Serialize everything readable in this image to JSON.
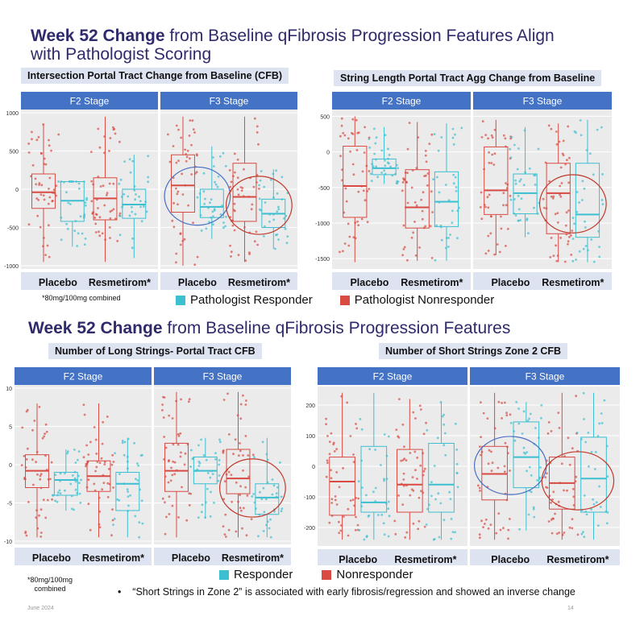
{
  "heading1": {
    "bold": "Week 52 Change",
    "rest": " from Baseline qFibrosis Progression Features Align",
    "line2": "with Pathologist Scoring"
  },
  "heading2": {
    "bold": "Week 52 Change",
    "rest": " from Baseline qFibrosis Progression Features"
  },
  "colors": {
    "responder": "#3bbfd1",
    "nonresponder": "#d94a43",
    "strip": "#4472c4",
    "panel_bg": "#ebebeb",
    "title_bg": "#dde3f1",
    "label_bg": "#dde3f1",
    "heading": "#2e2a6b"
  },
  "legend_top": {
    "responder": "Pathologist Responder",
    "nonresponder": "Pathologist Nonresponder"
  },
  "legend_bottom": {
    "responder": "Responder",
    "nonresponder": "Nonresponder"
  },
  "notes": {
    "top": "*80mg/100mg combined",
    "bottom": "*80mg/100mg combined"
  },
  "bullet": "“Short Strings in Zone 2” is associated with early fibrosis/regression and showed an inverse change",
  "footer": {
    "left": "June 2024",
    "right": "14"
  },
  "chart_data": [
    {
      "type": "box",
      "title": "Intersection Portal Tract Change from Baseline (CFB)",
      "facets": [
        "F2 Stage",
        "F3 Stage"
      ],
      "categories": [
        "Placebo",
        "Resmetirom*"
      ],
      "ylim": [
        -1000,
        1000
      ],
      "yticks": [
        -1000,
        -500,
        0,
        500,
        1000
      ],
      "series": [
        {
          "name": "Pathologist Nonresponder",
          "facet": "F2 Stage",
          "category": "Placebo",
          "q1": -250,
          "median": -40,
          "q3": 200,
          "whislo": -950,
          "whishi": 850
        },
        {
          "name": "Pathologist Responder",
          "facet": "F2 Stage",
          "category": "Placebo",
          "q1": -420,
          "median": -150,
          "q3": 100,
          "whislo": -750,
          "whishi": 100
        },
        {
          "name": "Pathologist Nonresponder",
          "facet": "F2 Stage",
          "category": "Resmetirom*",
          "q1": -400,
          "median": -120,
          "q3": 150,
          "whislo": -950,
          "whishi": 950
        },
        {
          "name": "Pathologist Responder",
          "facet": "F2 Stage",
          "category": "Resmetirom*",
          "q1": -380,
          "median": -200,
          "q3": 0,
          "whislo": -900,
          "whishi": 450
        },
        {
          "name": "Pathologist Nonresponder",
          "facet": "F3 Stage",
          "category": "Placebo",
          "q1": -300,
          "median": 50,
          "q3": 450,
          "whislo": -1000,
          "whishi": 950
        },
        {
          "name": "Pathologist Responder",
          "facet": "F3 Stage",
          "category": "Placebo",
          "q1": -370,
          "median": -230,
          "q3": 0,
          "whislo": -650,
          "whishi": 560
        },
        {
          "name": "Pathologist Nonresponder",
          "facet": "F3 Stage",
          "category": "Resmetirom*",
          "q1": -420,
          "median": -100,
          "q3": 340,
          "whislo": -950,
          "whishi": 950
        },
        {
          "name": "Pathologist Responder",
          "facet": "F3 Stage",
          "category": "Resmetirom*",
          "q1": -500,
          "median": -320,
          "q3": -130,
          "whislo": -780,
          "whishi": 260
        }
      ],
      "highlights": [
        {
          "facet": "F3 Stage",
          "category": "Placebo",
          "color": "blue"
        },
        {
          "facet": "F3 Stage",
          "category": "Resmetirom*",
          "color": "red"
        }
      ]
    },
    {
      "type": "box",
      "title": "String Length Portal Tract Agg Change from Baseline",
      "facets": [
        "F2 Stage",
        "F3 Stage"
      ],
      "categories": [
        "Placebo",
        "Resmetirom*"
      ],
      "ylim": [
        -1600,
        550
      ],
      "yticks": [
        -1500,
        -1000,
        -500,
        0,
        500
      ],
      "series": [
        {
          "name": "Pathologist Nonresponder",
          "facet": "F2 Stage",
          "category": "Placebo",
          "q1": -920,
          "median": -480,
          "q3": 80,
          "whislo": -1550,
          "whishi": 500
        },
        {
          "name": "Pathologist Responder",
          "facet": "F2 Stage",
          "category": "Placebo",
          "q1": -320,
          "median": -230,
          "q3": -100,
          "whislo": -450,
          "whishi": 350
        },
        {
          "name": "Pathologist Nonresponder",
          "facet": "F2 Stage",
          "category": "Resmetirom*",
          "q1": -1070,
          "median": -780,
          "q3": -250,
          "whislo": -1530,
          "whishi": 420
        },
        {
          "name": "Pathologist Responder",
          "facet": "F2 Stage",
          "category": "Resmetirom*",
          "q1": -1050,
          "median": -700,
          "q3": -280,
          "whislo": -1530,
          "whishi": 400
        },
        {
          "name": "Pathologist Nonresponder",
          "facet": "F3 Stage",
          "category": "Placebo",
          "q1": -880,
          "median": -540,
          "q3": 70,
          "whislo": -1450,
          "whishi": 450
        },
        {
          "name": "Pathologist Responder",
          "facet": "F3 Stage",
          "category": "Placebo",
          "q1": -870,
          "median": -580,
          "q3": -310,
          "whislo": -1200,
          "whishi": 350
        },
        {
          "name": "Pathologist Nonresponder",
          "facet": "F3 Stage",
          "category": "Resmetirom*",
          "q1": -1150,
          "median": -580,
          "q3": -160,
          "whislo": -1550,
          "whishi": 400
        },
        {
          "name": "Pathologist Responder",
          "facet": "F3 Stage",
          "category": "Resmetirom*",
          "q1": -1200,
          "median": -880,
          "q3": -160,
          "whislo": -1550,
          "whishi": 450
        }
      ],
      "highlights": [
        {
          "facet": "F3 Stage",
          "category": "Resmetirom*",
          "color": "red"
        }
      ]
    },
    {
      "type": "box",
      "title": "Number of Long Strings- Portal Tract CFB",
      "facets": [
        "F2 Stage",
        "F3 Stage"
      ],
      "categories": [
        "Placebo",
        "Resmetirom*"
      ],
      "ylim": [
        -10,
        10
      ],
      "yticks": [
        -10,
        -5,
        0,
        5,
        10
      ],
      "series": [
        {
          "name": "Nonresponder",
          "facet": "F2 Stage",
          "category": "Placebo",
          "q1": -3,
          "median": -0.8,
          "q3": 1.3,
          "whislo": -9.5,
          "whishi": 8
        },
        {
          "name": "Responder",
          "facet": "F2 Stage",
          "category": "Placebo",
          "q1": -4,
          "median": -2,
          "q3": -1,
          "whislo": -6,
          "whishi": 2
        },
        {
          "name": "Nonresponder",
          "facet": "F2 Stage",
          "category": "Resmetirom*",
          "q1": -3.5,
          "median": -1.5,
          "q3": 0.5,
          "whislo": -9.5,
          "whishi": 8
        },
        {
          "name": "Responder",
          "facet": "F2 Stage",
          "category": "Resmetirom*",
          "q1": -6,
          "median": -2.5,
          "q3": -1,
          "whislo": -9.5,
          "whishi": 3.5
        },
        {
          "name": "Nonresponder",
          "facet": "F3 Stage",
          "category": "Placebo",
          "q1": -3.5,
          "median": -0.8,
          "q3": 2.8,
          "whislo": -9.5,
          "whishi": 9.5
        },
        {
          "name": "Responder",
          "facet": "F3 Stage",
          "category": "Placebo",
          "q1": -2.5,
          "median": -0.8,
          "q3": 1,
          "whislo": -7,
          "whishi": 3.5
        },
        {
          "name": "Nonresponder",
          "facet": "F3 Stage",
          "category": "Resmetirom*",
          "q1": -3.8,
          "median": -1.8,
          "q3": 2,
          "whislo": -9.5,
          "whishi": 9.5
        },
        {
          "name": "Responder",
          "facet": "F3 Stage",
          "category": "Resmetirom*",
          "q1": -6.5,
          "median": -4.3,
          "q3": -2.5,
          "whislo": -9.5,
          "whishi": 3.5
        }
      ],
      "highlights": [
        {
          "facet": "F3 Stage",
          "category": "Resmetirom*",
          "color": "red"
        }
      ]
    },
    {
      "type": "box",
      "title": "Number of Short Strings Zone 2 CFB",
      "facets": [
        "F2 Stage",
        "F3 Stage"
      ],
      "categories": [
        "Placebo",
        "Resmetirom*"
      ],
      "ylim": [
        -250,
        250
      ],
      "yticks": [
        -200,
        -100,
        0,
        100,
        200
      ],
      "series": [
        {
          "name": "Nonresponder",
          "facet": "F2 Stage",
          "category": "Placebo",
          "q1": -160,
          "median": -50,
          "q3": 30,
          "whislo": -240,
          "whishi": 240
        },
        {
          "name": "Responder",
          "facet": "F2 Stage",
          "category": "Placebo",
          "q1": -150,
          "median": -118,
          "q3": 65,
          "whislo": -240,
          "whishi": 240
        },
        {
          "name": "Nonresponder",
          "facet": "F2 Stage",
          "category": "Resmetirom*",
          "q1": -150,
          "median": -60,
          "q3": 55,
          "whislo": -240,
          "whishi": 220
        },
        {
          "name": "Responder",
          "facet": "F2 Stage",
          "category": "Resmetirom*",
          "q1": -150,
          "median": -60,
          "q3": 75,
          "whislo": -240,
          "whishi": 210
        },
        {
          "name": "Nonresponder",
          "facet": "F3 Stage",
          "category": "Placebo",
          "q1": -110,
          "median": -25,
          "q3": 65,
          "whislo": -240,
          "whishi": 240
        },
        {
          "name": "Responder",
          "facet": "F3 Stage",
          "category": "Placebo",
          "q1": -70,
          "median": 30,
          "q3": 145,
          "whislo": -210,
          "whishi": 210
        },
        {
          "name": "Nonresponder",
          "facet": "F3 Stage",
          "category": "Resmetirom*",
          "q1": -140,
          "median": -55,
          "q3": 30,
          "whislo": -240,
          "whishi": 240
        },
        {
          "name": "Responder",
          "facet": "F3 Stage",
          "category": "Resmetirom*",
          "q1": -150,
          "median": -40,
          "q3": 95,
          "whislo": -240,
          "whishi": 240
        }
      ],
      "highlights": [
        {
          "facet": "F3 Stage",
          "category": "Placebo",
          "color": "blue"
        },
        {
          "facet": "F3 Stage",
          "category": "Resmetirom*",
          "color": "red"
        }
      ]
    }
  ]
}
